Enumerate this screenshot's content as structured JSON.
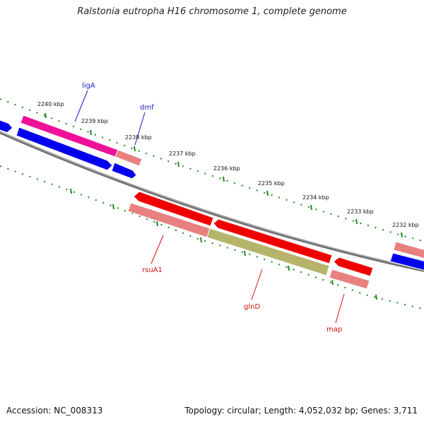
{
  "title": "Ralstonia eutropha H16 chromosome 1, complete genome",
  "footer": {
    "accession": "Accession: NC_008313",
    "summary": "Topology: circular; Length: 4,052,032 bp; Genes: 3,711"
  },
  "scale_labels": [
    "2240 kbp",
    "2239 kbp",
    "2238 kbp",
    "2237 kbp",
    "2236 kbp",
    "2235 kbp",
    "2234 kbp",
    "2233 kbp",
    "2232 kbp"
  ],
  "gene_labels": {
    "ligA": "ligA",
    "dmf": "dmf",
    "rsuA1": "rsuA1",
    "glnD": "glnD",
    "map": "map"
  },
  "colors": {
    "backbone": "#7a7a7a",
    "tick": "#228822",
    "cds_blue": "#0000ee",
    "cds_magenta": "#ee1199",
    "cds_red": "#ee0000",
    "cds_pink": "#e88080",
    "cds_olive": "#b5b46a",
    "label_blue": "#1a1acc",
    "label_red": "#cc1111"
  }
}
